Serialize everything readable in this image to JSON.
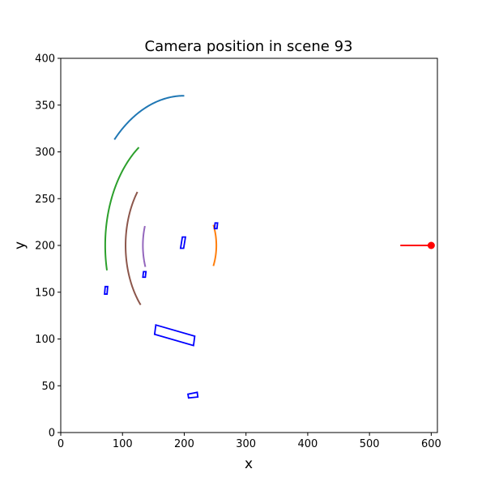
{
  "chart_data": {
    "type": "line",
    "title": "Camera position in scene 93",
    "xlabel": "x",
    "ylabel": "y",
    "xlim": [
      0,
      610
    ],
    "ylim": [
      0,
      400
    ],
    "xticks": [
      0,
      100,
      200,
      300,
      400,
      500,
      600
    ],
    "yticks": [
      0,
      50,
      100,
      150,
      200,
      250,
      300,
      350,
      400
    ],
    "grid": false,
    "legend": "none",
    "arcs": [
      {
        "color": "#1f77b4",
        "cx": 200,
        "cy": 200,
        "r": 160,
        "start_deg": 90,
        "end_deg": 135
      },
      {
        "color": "#2ca02c",
        "cx": 200,
        "cy": 200,
        "r": 128,
        "start_deg": 125,
        "end_deg": 192
      },
      {
        "color": "#8c564b",
        "cx": 200,
        "cy": 200,
        "r": 95,
        "start_deg": 143,
        "end_deg": 222
      },
      {
        "color": "#9467bd",
        "cx": 200,
        "cy": 200,
        "r": 67,
        "start_deg": 162,
        "end_deg": 200
      },
      {
        "color": "#ff7f0e",
        "cx": 200,
        "cy": 200,
        "r": 52,
        "start_deg": -25,
        "end_deg": 25
      }
    ],
    "boxes": [
      {
        "color": "#0000ff",
        "points": [
          [
            154,
            115
          ],
          [
            217,
            103
          ],
          [
            215,
            93
          ],
          [
            152,
            105
          ]
        ]
      },
      {
        "color": "#0000ff",
        "points": [
          [
            206,
            41
          ],
          [
            221,
            43
          ],
          [
            222,
            38
          ],
          [
            207,
            37
          ]
        ]
      },
      {
        "color": "#0000ff",
        "points": [
          [
            194,
            197
          ],
          [
            199,
            197
          ],
          [
            202,
            209
          ],
          [
            197,
            209
          ]
        ]
      },
      {
        "color": "#0000ff",
        "points": [
          [
            249,
            218
          ],
          [
            253,
            218
          ],
          [
            254,
            224
          ],
          [
            250,
            224
          ]
        ]
      },
      {
        "color": "#0000ff",
        "points": [
          [
            71,
            148
          ],
          [
            75,
            148
          ],
          [
            76,
            156
          ],
          [
            72,
            156
          ]
        ]
      },
      {
        "color": "#0000ff",
        "points": [
          [
            133,
            166
          ],
          [
            137,
            166
          ],
          [
            138,
            172
          ],
          [
            134,
            172
          ]
        ]
      }
    ],
    "camera": {
      "color": "#ff0000",
      "x": 600,
      "y": 200,
      "line_from_x": 550
    }
  }
}
